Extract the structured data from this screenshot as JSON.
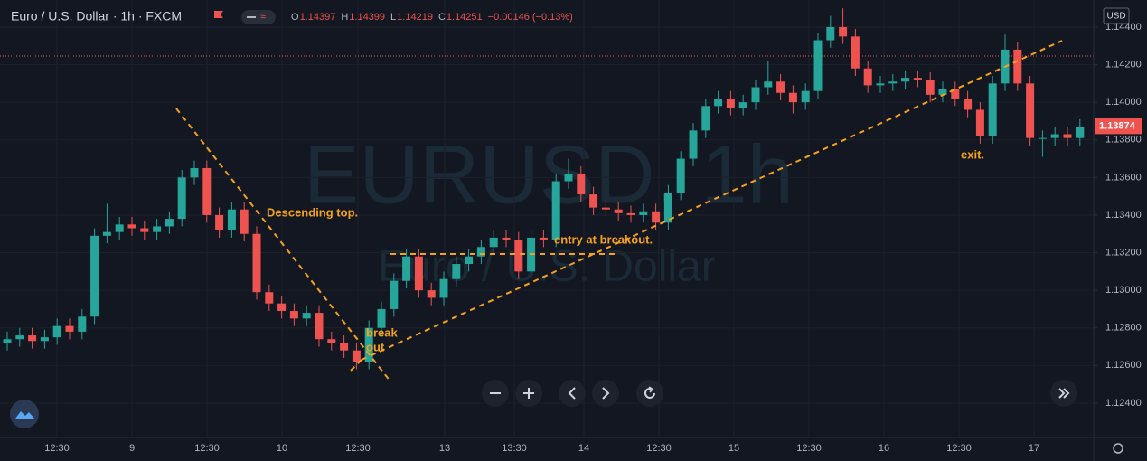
{
  "chart_data": {
    "type": "candlestick",
    "title": "Euro / U.S. Dollar · 1h · FXCM",
    "header_ohlc": [
      {
        "label": "O",
        "value": "1.14397"
      },
      {
        "label": "H",
        "value": "1.14399"
      },
      {
        "label": "L",
        "value": "1.14219"
      },
      {
        "label": "C",
        "value": "1.14251"
      }
    ],
    "header_change": "−0.00146 (−0.13%)",
    "watermark": "EURUSD, 1h",
    "watermark_subtitle": "Euro / U.S. Dollar",
    "currency": "USD",
    "annotations": [
      "Descending top.",
      "break",
      "out",
      "entry at breakout.",
      "exit."
    ],
    "up_color": "#26a69a",
    "down_color": "#ef5350",
    "xtick_labels": [
      "12:30",
      "9",
      "12:30",
      "10",
      "12:30",
      "13",
      "13:30",
      "14",
      "12:30",
      "15",
      "12:30",
      "16",
      "12:30",
      "17"
    ],
    "ylim": [
      1.12217,
      1.14544
    ],
    "yticks": [
      {
        "value": 1.144,
        "label": "1.14400"
      },
      {
        "value": 1.142,
        "label": "1.14200"
      },
      {
        "value": 1.14,
        "label": "1.14000"
      },
      {
        "value": 1.138,
        "label": "1.13800"
      },
      {
        "value": 1.136,
        "label": "1.13600"
      },
      {
        "value": 1.134,
        "label": "1.13400"
      },
      {
        "value": 1.132,
        "label": "1.13200"
      },
      {
        "value": 1.13,
        "label": "1.13000"
      },
      {
        "value": 1.128,
        "label": "1.12800"
      },
      {
        "value": 1.126,
        "label": "1.12600"
      },
      {
        "value": 1.124,
        "label": "1.12400"
      }
    ],
    "last_price": 1.13874,
    "ohlc": [
      [
        1.1272,
        1.1278,
        1.1268,
        1.1274
      ],
      [
        1.1274,
        1.128,
        1.127,
        1.1276
      ],
      [
        1.1276,
        1.128,
        1.1269,
        1.1273
      ],
      [
        1.1273,
        1.1279,
        1.1269,
        1.1275
      ],
      [
        1.1275,
        1.1285,
        1.1271,
        1.1281
      ],
      [
        1.1281,
        1.1285,
        1.1274,
        1.1278
      ],
      [
        1.1278,
        1.129,
        1.1274,
        1.1286
      ],
      [
        1.1286,
        1.1333,
        1.1282,
        1.1329
      ],
      [
        1.1329,
        1.1346,
        1.1325,
        1.1331
      ],
      [
        1.1331,
        1.1339,
        1.1327,
        1.1335
      ],
      [
        1.1335,
        1.1339,
        1.1329,
        1.1333
      ],
      [
        1.1333,
        1.1337,
        1.1327,
        1.1331
      ],
      [
        1.1331,
        1.1338,
        1.1327,
        1.1334
      ],
      [
        1.1334,
        1.1342,
        1.133,
        1.1338
      ],
      [
        1.1338,
        1.1364,
        1.1334,
        1.136
      ],
      [
        1.136,
        1.1369,
        1.1356,
        1.1365
      ],
      [
        1.1365,
        1.1369,
        1.1336,
        1.134
      ],
      [
        1.134,
        1.1344,
        1.1328,
        1.1332
      ],
      [
        1.1332,
        1.1347,
        1.1328,
        1.1343
      ],
      [
        1.1343,
        1.1347,
        1.1326,
        1.133
      ],
      [
        1.133,
        1.1334,
        1.1295,
        1.1299
      ],
      [
        1.1299,
        1.1303,
        1.1289,
        1.1293
      ],
      [
        1.1293,
        1.1297,
        1.1285,
        1.1289
      ],
      [
        1.1289,
        1.1293,
        1.1281,
        1.1285
      ],
      [
        1.1285,
        1.1292,
        1.1281,
        1.1288
      ],
      [
        1.1288,
        1.1292,
        1.127,
        1.1274
      ],
      [
        1.1274,
        1.1278,
        1.1268,
        1.1272
      ],
      [
        1.1272,
        1.1276,
        1.1264,
        1.1268
      ],
      [
        1.1268,
        1.1272,
        1.1258,
        1.1262
      ],
      [
        1.1262,
        1.1284,
        1.1258,
        1.128
      ],
      [
        1.128,
        1.1294,
        1.1276,
        1.129
      ],
      [
        1.129,
        1.1309,
        1.1286,
        1.1305
      ],
      [
        1.1305,
        1.1322,
        1.1301,
        1.1318
      ],
      [
        1.1318,
        1.1322,
        1.1296,
        1.13
      ],
      [
        1.13,
        1.1304,
        1.1292,
        1.1296
      ],
      [
        1.1296,
        1.131,
        1.1292,
        1.1306
      ],
      [
        1.1306,
        1.1318,
        1.1302,
        1.1314
      ],
      [
        1.1314,
        1.1322,
        1.131,
        1.1318
      ],
      [
        1.1318,
        1.1327,
        1.1314,
        1.1323
      ],
      [
        1.1323,
        1.1332,
        1.1319,
        1.1328
      ],
      [
        1.1328,
        1.1332,
        1.1323,
        1.1327
      ],
      [
        1.1327,
        1.1331,
        1.1306,
        1.131
      ],
      [
        1.131,
        1.1332,
        1.1306,
        1.1328
      ],
      [
        1.1328,
        1.1332,
        1.1323,
        1.1327
      ],
      [
        1.1327,
        1.1362,
        1.1323,
        1.1358
      ],
      [
        1.1358,
        1.137,
        1.1354,
        1.1362
      ],
      [
        1.1362,
        1.1366,
        1.1347,
        1.1351
      ],
      [
        1.1351,
        1.1355,
        1.134,
        1.1344
      ],
      [
        1.1344,
        1.1348,
        1.1339,
        1.1343
      ],
      [
        1.1343,
        1.1347,
        1.1337,
        1.1341
      ],
      [
        1.1341,
        1.1345,
        1.1336,
        1.134
      ],
      [
        1.134,
        1.1346,
        1.1336,
        1.1342
      ],
      [
        1.1342,
        1.1346,
        1.1332,
        1.1336
      ],
      [
        1.1336,
        1.1356,
        1.1332,
        1.1352
      ],
      [
        1.1352,
        1.1374,
        1.1348,
        1.137
      ],
      [
        1.137,
        1.1389,
        1.1366,
        1.1385
      ],
      [
        1.1385,
        1.1402,
        1.1381,
        1.1398
      ],
      [
        1.1398,
        1.1406,
        1.1394,
        1.1402
      ],
      [
        1.1402,
        1.1406,
        1.1393,
        1.1397
      ],
      [
        1.1397,
        1.1404,
        1.1393,
        1.14
      ],
      [
        1.14,
        1.1412,
        1.1396,
        1.1408
      ],
      [
        1.1408,
        1.1422,
        1.1404,
        1.1411
      ],
      [
        1.1411,
        1.1415,
        1.1401,
        1.1405
      ],
      [
        1.1405,
        1.1409,
        1.1394,
        1.14
      ],
      [
        1.14,
        1.141,
        1.1396,
        1.1406
      ],
      [
        1.1406,
        1.1437,
        1.1402,
        1.1433
      ],
      [
        1.1433,
        1.1446,
        1.1429,
        1.144
      ],
      [
        1.144,
        1.145,
        1.1431,
        1.1435
      ],
      [
        1.1435,
        1.1439,
        1.1414,
        1.1418
      ],
      [
        1.1418,
        1.1422,
        1.1405,
        1.1409
      ],
      [
        1.1409,
        1.1414,
        1.1405,
        1.141
      ],
      [
        1.141,
        1.1415,
        1.1406,
        1.1411
      ],
      [
        1.1411,
        1.1417,
        1.1407,
        1.1413
      ],
      [
        1.1413,
        1.1417,
        1.1408,
        1.1412
      ],
      [
        1.1412,
        1.1416,
        1.14,
        1.1404
      ],
      [
        1.1404,
        1.1411,
        1.14,
        1.1407
      ],
      [
        1.1407,
        1.1411,
        1.1398,
        1.1402
      ],
      [
        1.1402,
        1.1406,
        1.1392,
        1.1396
      ],
      [
        1.1396,
        1.14,
        1.1378,
        1.1382
      ],
      [
        1.1382,
        1.1414,
        1.1378,
        1.141
      ],
      [
        1.141,
        1.1436,
        1.1406,
        1.1428
      ],
      [
        1.1428,
        1.1432,
        1.1406,
        1.141
      ],
      [
        1.141,
        1.1414,
        1.1377,
        1.1381
      ],
      [
        1.1381,
        1.1385,
        1.1371,
        1.1381
      ],
      [
        1.1381,
        1.1387,
        1.1377,
        1.1383
      ],
      [
        1.1383,
        1.1387,
        1.1377,
        1.1381
      ],
      [
        1.1381,
        1.1391,
        1.1377,
        1.1387
      ]
    ]
  }
}
